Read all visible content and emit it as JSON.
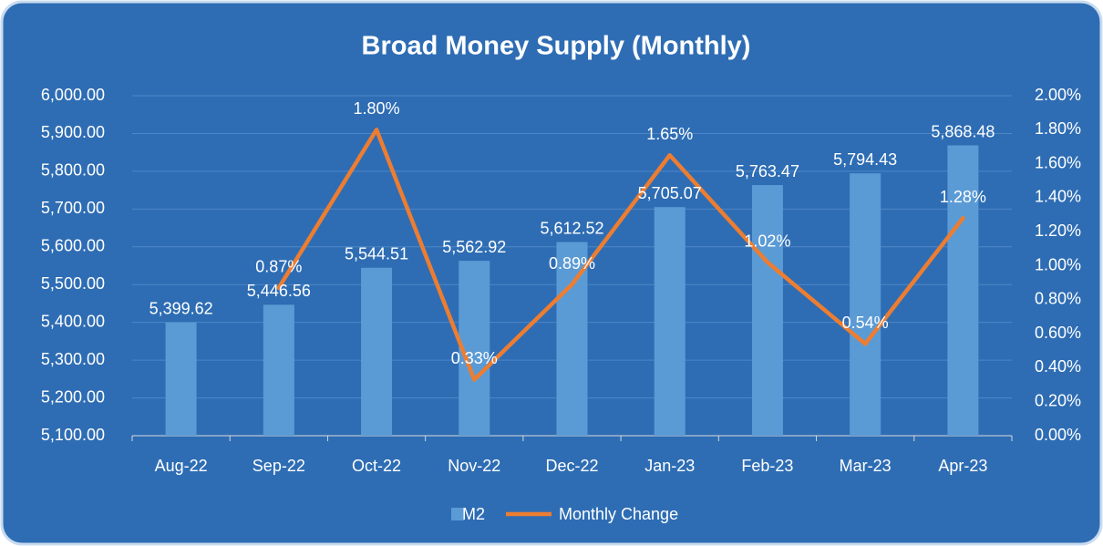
{
  "chart_data": {
    "type": "bar-line",
    "title": "Broad Money Supply (Monthly)",
    "categories": [
      "Aug-22",
      "Sep-22",
      "Oct-22",
      "Nov-22",
      "Dec-22",
      "Jan-23",
      "Feb-23",
      "Mar-23",
      "Apr-23"
    ],
    "series": [
      {
        "name": "M2",
        "type": "bar",
        "color": "#5b9bd5",
        "values": [
          5399.62,
          5446.56,
          5544.51,
          5562.92,
          5612.52,
          5705.07,
          5763.47,
          5794.43,
          5868.48
        ],
        "value_labels": [
          "5,399.62",
          "5,446.56",
          "5,544.51",
          "5,562.92",
          "5,612.52",
          "5,705.07",
          "5,763.47",
          "5,794.43",
          "5,868.48"
        ]
      },
      {
        "name": "Monthly Change",
        "type": "line",
        "axis": "y2",
        "color": "#ed7d31",
        "values": [
          null,
          0.87,
          1.8,
          0.33,
          0.89,
          1.65,
          1.02,
          0.54,
          1.28
        ],
        "value_labels": [
          null,
          "0.87%",
          "1.80%",
          "0.33%",
          "0.89%",
          "1.65%",
          "1.02%",
          "0.54%",
          "1.28%"
        ]
      }
    ],
    "ylim": [
      5100,
      6000
    ],
    "yticks": [
      {
        "value": 5100,
        "label": "5,100.00"
      },
      {
        "value": 5200,
        "label": "5,200.00"
      },
      {
        "value": 5300,
        "label": "5,300.00"
      },
      {
        "value": 5400,
        "label": "5,400.00"
      },
      {
        "value": 5500,
        "label": "5,500.00"
      },
      {
        "value": 5600,
        "label": "5,600.00"
      },
      {
        "value": 5700,
        "label": "5,700.00"
      },
      {
        "value": 5800,
        "label": "5,800.00"
      },
      {
        "value": 5900,
        "label": "5,900.00"
      },
      {
        "value": 6000,
        "label": "6,000.00"
      }
    ],
    "y2lim": [
      0,
      2
    ],
    "y2ticks": [
      {
        "value": 0,
        "label": "0.00%"
      },
      {
        "value": 0.2,
        "label": "0.20%"
      },
      {
        "value": 0.4,
        "label": "0.40%"
      },
      {
        "value": 0.6,
        "label": "0.60%"
      },
      {
        "value": 0.8,
        "label": "0.80%"
      },
      {
        "value": 1.0,
        "label": "1.00%"
      },
      {
        "value": 1.2,
        "label": "1.20%"
      },
      {
        "value": 1.4,
        "label": "1.40%"
      },
      {
        "value": 1.6,
        "label": "1.60%"
      },
      {
        "value": 1.8,
        "label": "1.80%"
      },
      {
        "value": 2.0,
        "label": "2.00%"
      }
    ],
    "grid": true,
    "legend": "bottom"
  }
}
